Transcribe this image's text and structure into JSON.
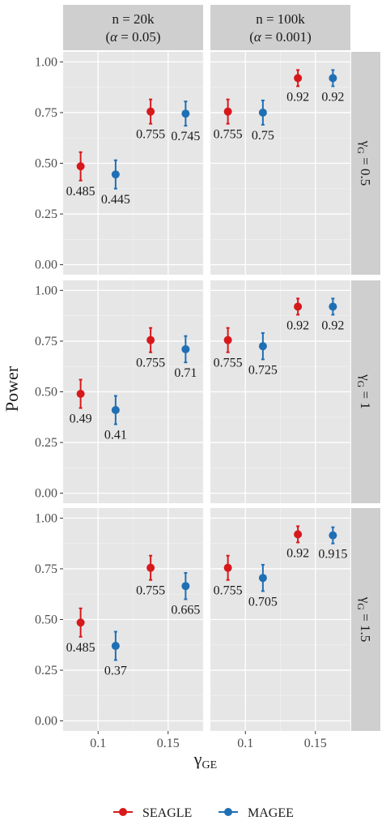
{
  "chart_data": {
    "type": "scatter",
    "subtype": "point-with-errorbars, faceted grid",
    "xlabel": "γ",
    "xlabel_subscript": "GE",
    "ylabel": "Power",
    "ylim": [
      0,
      1
    ],
    "xlim": [
      0.075,
      0.175
    ],
    "x_ticks": [
      0.1,
      0.15
    ],
    "x_tick_labels": [
      "0.1",
      "0.15"
    ],
    "y_ticks": [
      0,
      0.25,
      0.5,
      0.75,
      1
    ],
    "y_tick_labels": [
      "0.00",
      "0.25",
      "0.50",
      "0.75",
      "1.00"
    ],
    "grid": true,
    "legend_position": "bottom",
    "columns": [
      {
        "line1": "n = 20k",
        "line2_open": "(",
        "line2_alpha": "α",
        "line2_rest": " = 0.05)"
      },
      {
        "line1": "n = 100k",
        "line2_open": "(",
        "line2_alpha": "α",
        "line2_rest": " = 0.001)"
      }
    ],
    "rows": [
      {
        "greek": "γ",
        "sub": "G",
        "rest": " = 0.5"
      },
      {
        "greek": "γ",
        "sub": "G",
        "rest": " = 1"
      },
      {
        "greek": "γ",
        "sub": "G",
        "rest": " = 1.5"
      }
    ],
    "series": [
      {
        "name": "SEAGLE",
        "color": "#d7191c",
        "x_offset": -0.0125
      },
      {
        "name": "MAGEE",
        "color": "#1f6fb4",
        "x_offset": 0.0125
      }
    ],
    "panels": [
      {
        "row": 0,
        "col": 0,
        "points": [
          {
            "series": 0,
            "x": 0.1,
            "y": 0.485,
            "lo": 0.415,
            "hi": 0.555,
            "label": "0.485"
          },
          {
            "series": 1,
            "x": 0.1,
            "y": 0.445,
            "lo": 0.375,
            "hi": 0.515,
            "label": "0.445"
          },
          {
            "series": 0,
            "x": 0.15,
            "y": 0.755,
            "lo": 0.695,
            "hi": 0.815,
            "label": "0.755"
          },
          {
            "series": 1,
            "x": 0.15,
            "y": 0.745,
            "lo": 0.685,
            "hi": 0.805,
            "label": "0.745"
          }
        ]
      },
      {
        "row": 0,
        "col": 1,
        "points": [
          {
            "series": 0,
            "x": 0.1,
            "y": 0.755,
            "lo": 0.695,
            "hi": 0.815,
            "label": "0.755"
          },
          {
            "series": 1,
            "x": 0.1,
            "y": 0.75,
            "lo": 0.69,
            "hi": 0.81,
            "label": "0.75"
          },
          {
            "series": 0,
            "x": 0.15,
            "y": 0.92,
            "lo": 0.88,
            "hi": 0.96,
            "label": "0.92"
          },
          {
            "series": 1,
            "x": 0.15,
            "y": 0.92,
            "lo": 0.88,
            "hi": 0.96,
            "label": "0.92"
          }
        ]
      },
      {
        "row": 1,
        "col": 0,
        "points": [
          {
            "series": 0,
            "x": 0.1,
            "y": 0.49,
            "lo": 0.42,
            "hi": 0.56,
            "label": "0.49"
          },
          {
            "series": 1,
            "x": 0.1,
            "y": 0.41,
            "lo": 0.34,
            "hi": 0.48,
            "label": "0.41"
          },
          {
            "series": 0,
            "x": 0.15,
            "y": 0.755,
            "lo": 0.695,
            "hi": 0.815,
            "label": "0.755"
          },
          {
            "series": 1,
            "x": 0.15,
            "y": 0.71,
            "lo": 0.645,
            "hi": 0.775,
            "label": "0.71"
          }
        ]
      },
      {
        "row": 1,
        "col": 1,
        "points": [
          {
            "series": 0,
            "x": 0.1,
            "y": 0.755,
            "lo": 0.695,
            "hi": 0.815,
            "label": "0.755"
          },
          {
            "series": 1,
            "x": 0.1,
            "y": 0.725,
            "lo": 0.66,
            "hi": 0.79,
            "label": "0.725"
          },
          {
            "series": 0,
            "x": 0.15,
            "y": 0.92,
            "lo": 0.88,
            "hi": 0.96,
            "label": "0.92"
          },
          {
            "series": 1,
            "x": 0.15,
            "y": 0.92,
            "lo": 0.88,
            "hi": 0.96,
            "label": "0.92"
          }
        ]
      },
      {
        "row": 2,
        "col": 0,
        "points": [
          {
            "series": 0,
            "x": 0.1,
            "y": 0.485,
            "lo": 0.415,
            "hi": 0.555,
            "label": "0.485"
          },
          {
            "series": 1,
            "x": 0.1,
            "y": 0.37,
            "lo": 0.3,
            "hi": 0.44,
            "label": "0.37"
          },
          {
            "series": 0,
            "x": 0.15,
            "y": 0.755,
            "lo": 0.695,
            "hi": 0.815,
            "label": "0.755"
          },
          {
            "series": 1,
            "x": 0.15,
            "y": 0.665,
            "lo": 0.6,
            "hi": 0.73,
            "label": "0.665"
          }
        ]
      },
      {
        "row": 2,
        "col": 1,
        "points": [
          {
            "series": 0,
            "x": 0.1,
            "y": 0.755,
            "lo": 0.695,
            "hi": 0.815,
            "label": "0.755"
          },
          {
            "series": 1,
            "x": 0.1,
            "y": 0.705,
            "lo": 0.64,
            "hi": 0.77,
            "label": "0.705"
          },
          {
            "series": 0,
            "x": 0.15,
            "y": 0.92,
            "lo": 0.88,
            "hi": 0.96,
            "label": "0.92"
          },
          {
            "series": 1,
            "x": 0.15,
            "y": 0.915,
            "lo": 0.875,
            "hi": 0.955,
            "label": "0.915"
          }
        ]
      }
    ]
  }
}
